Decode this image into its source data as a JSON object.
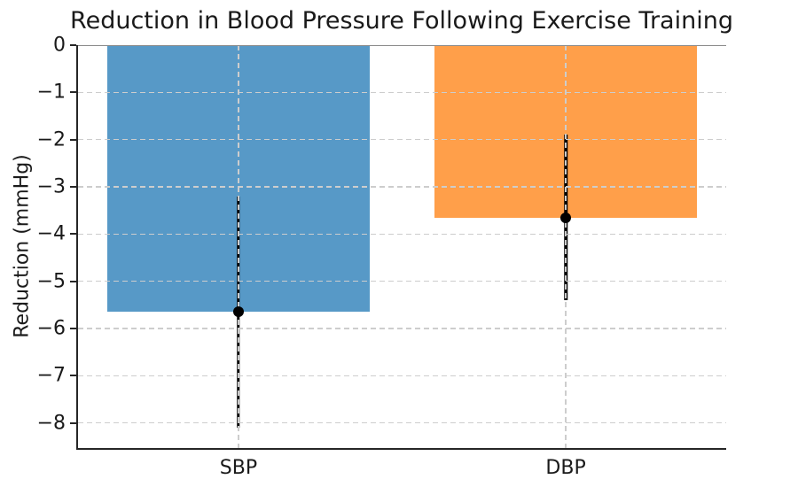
{
  "chart_data": {
    "type": "bar",
    "title": "Reduction in Blood Pressure Following Exercise Training",
    "xlabel": "",
    "ylabel": "Reduction (mmHg)",
    "categories": [
      "SBP",
      "DBP"
    ],
    "values": [
      -5.65,
      -3.65
    ],
    "error_bars": {
      "ci_low": [
        -8.1,
        -5.4
      ],
      "ci_high": [
        -3.2,
        -1.9
      ]
    },
    "yticks": [
      0,
      -1,
      -2,
      -3,
      -4,
      -5,
      -6,
      -7,
      -8
    ],
    "ytick_labels": [
      "0",
      "−1",
      "−2",
      "−3",
      "−4",
      "−5",
      "−6",
      "−7",
      "−8"
    ],
    "ylim": [
      -8.53,
      0
    ],
    "bar_colors": [
      "#5799C7",
      "#FF9F4A"
    ],
    "error_color": "#000000",
    "grid_color": "#CDCDCD",
    "text_color": "#1A1A1A",
    "grid": "dashed, both axes, drawn above bars",
    "legend": "none",
    "marker": "filled black circle at bar value"
  }
}
